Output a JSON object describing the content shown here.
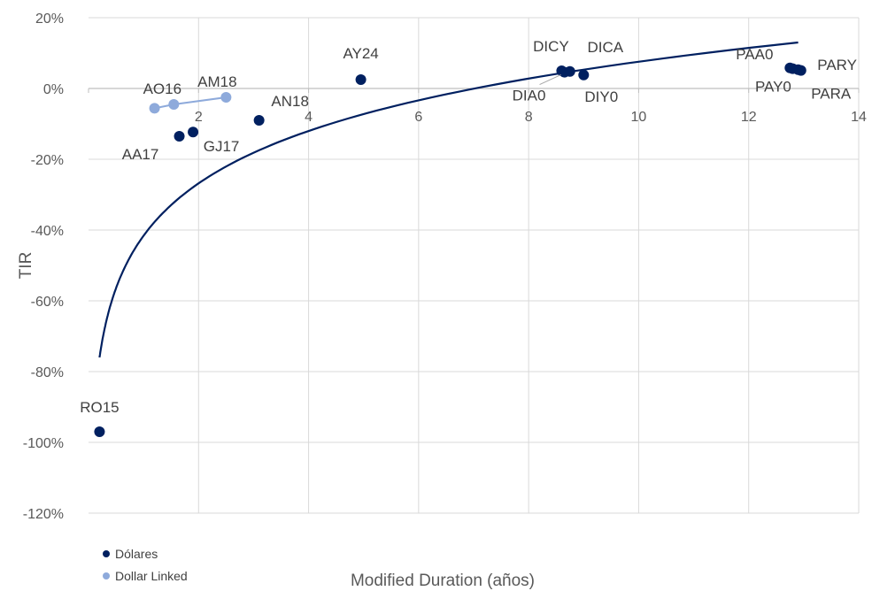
{
  "chart_data": {
    "type": "scatter",
    "title": "",
    "xlabel": "Modified Duration (años)",
    "ylabel": "TIR",
    "xlim": [
      0,
      14
    ],
    "ylim": [
      -120,
      20
    ],
    "x_ticks": [
      2,
      4,
      6,
      8,
      10,
      12,
      14
    ],
    "x_tick_labels": [
      "2",
      "4",
      "6",
      "8",
      "10",
      "12",
      "14"
    ],
    "y_ticks": [
      20,
      0,
      -20,
      -40,
      -60,
      -80,
      -100,
      -120
    ],
    "y_tick_labels": [
      "20%",
      "0%",
      "-20%",
      "-40%",
      "-60%",
      "-80%",
      "-100%",
      "-120%"
    ],
    "grid": "vertical and horizontal gridlines",
    "legend_position": "bottom-left",
    "colors": {
      "dolares": "#002060",
      "dollar_linked": "#8EAADB",
      "grid": "#D9D9D9",
      "axis": "#BFBFBF",
      "trend": "#002060"
    },
    "series": [
      {
        "name": "Dólares",
        "points": [
          {
            "label": "RO15",
            "x": 0.2,
            "y": -97
          },
          {
            "label": "AA17",
            "x": 1.65,
            "y": -13.5
          },
          {
            "label": "GJ17",
            "x": 1.9,
            "y": -12.3
          },
          {
            "label": "AN18",
            "x": 3.1,
            "y": -9
          },
          {
            "label": "AY24",
            "x": 4.95,
            "y": 2.5
          },
          {
            "label": "DICY",
            "x": 8.6,
            "y": 5
          },
          {
            "label": "DICA",
            "x": 8.75,
            "y": 4.8
          },
          {
            "label": "DIA0",
            "x": 8.65,
            "y": 4.6
          },
          {
            "label": "DIY0",
            "x": 9.0,
            "y": 3.8
          },
          {
            "label": "PAA0",
            "x": 12.75,
            "y": 5.8
          },
          {
            "label": "PAY0",
            "x": 12.8,
            "y": 5.6
          },
          {
            "label": "PARY",
            "x": 12.9,
            "y": 5.3
          },
          {
            "label": "PARA",
            "x": 12.95,
            "y": 5.1
          }
        ]
      },
      {
        "name": "Dollar Linked",
        "connected": true,
        "points": [
          {
            "label": "",
            "x": 1.2,
            "y": -5.6
          },
          {
            "label": "AO16",
            "x": 1.55,
            "y": -4.5
          },
          {
            "label": "AM18",
            "x": 2.5,
            "y": -2.5
          }
        ]
      }
    ],
    "trendline": {
      "type": "logarithmic",
      "x_range": [
        0.2,
        12.9
      ],
      "y_start": -76,
      "y_end": 13
    }
  },
  "legend": {
    "items": [
      {
        "name": "Dólares",
        "color": "#002060"
      },
      {
        "name": "Dollar Linked",
        "color": "#8EAADB"
      }
    ]
  }
}
